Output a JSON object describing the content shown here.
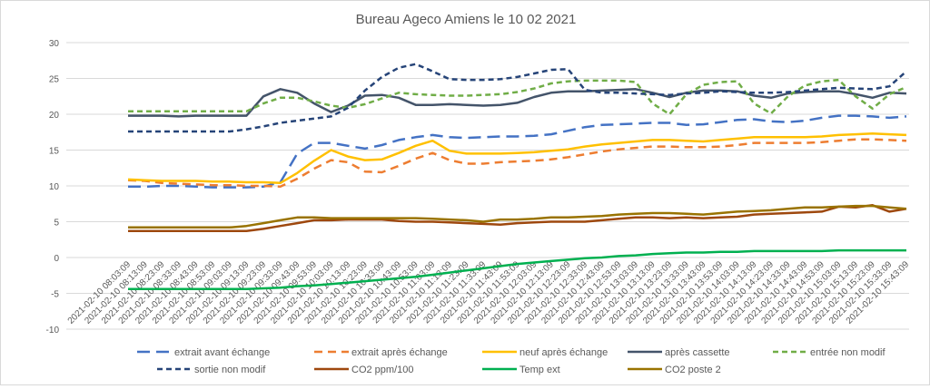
{
  "chart_data": {
    "type": "line",
    "title": "Bureau Ageco Amiens le 10 02 2021",
    "xlabel": "",
    "ylabel": "",
    "ylim": [
      -10,
      30
    ],
    "yticks": [
      30,
      25,
      20,
      15,
      10,
      5,
      0,
      -5,
      -10
    ],
    "grid": true,
    "legend_position": "bottom",
    "categories": [
      "2021-02-10 08:03:09",
      "2021-02-10 08:13:09",
      "2021-02-10 08:23:09",
      "2021-02-10 08:33:09",
      "2021-02-10 08:43:09",
      "2021-02-10 08:53:09",
      "2021-02-10 09:03:09",
      "2021-02-10 09:13:09",
      "2021-02-10 09:23:09",
      "2021-02-10 09:33:09",
      "2021-02-10 09:43:09",
      "2021-02-10 09:53:09",
      "2021-02-10 10:03:09",
      "2021-02-10 10:13:09",
      "2021-02-10 10:23:09",
      "2021-02-10 10:33:09",
      "2021-02-10 10:43:09",
      "2021-02-10 10:53:09",
      "2021-02-10 11:03:09",
      "2021-02-10 11:13:09",
      "2021-02-10 11:23:09",
      "2021-02-10 11:33:09",
      "2021-02-10 11:43:09",
      "2021-02-10 11:53:09",
      "2021-02-10 12:03:09",
      "2021-02-10 12:13:09",
      "2021-02-10 12:23:09",
      "2021-02-10 12:33:09",
      "2021-02-10 12:43:09",
      "2021-02-10 12:53:09",
      "2021-02-10 13:03:09",
      "2021-02-10 13:13:09",
      "2021-02-10 13:23:09",
      "2021-02-10 13:33:09",
      "2021-02-10 13:43:09",
      "2021-02-10 13:53:09",
      "2021-02-10 14:03:09",
      "2021-02-10 14:13:09",
      "2021-02-10 14:23:09",
      "2021-02-10 14:33:09",
      "2021-02-10 14:43:09",
      "2021-02-10 14:53:09",
      "2021-02-10 15:03:09",
      "2021-02-10 15:13:09",
      "2021-02-10 15:23:09",
      "2021-02-10 15:33:09",
      "2021-02-10 15:43:09"
    ],
    "series": [
      {
        "name": "extrait avant échange",
        "color": "#4472C4",
        "dash": "14,7",
        "values": [
          9.9,
          9.9,
          10.0,
          10.0,
          9.9,
          9.8,
          9.8,
          9.8,
          9.9,
          10.5,
          14.5,
          16.0,
          16.0,
          15.6,
          15.2,
          15.7,
          16.4,
          16.8,
          17.1,
          16.8,
          16.7,
          16.8,
          16.9,
          16.9,
          17.0,
          17.2,
          17.7,
          18.2,
          18.5,
          18.6,
          18.7,
          18.8,
          18.8,
          18.5,
          18.6,
          18.9,
          19.2,
          19.3,
          19.0,
          18.9,
          19.1,
          19.5,
          19.8,
          19.8,
          19.7,
          19.5,
          19.7
        ]
      },
      {
        "name": "extrait après échange",
        "color": "#ED7D31",
        "dash": "9,6",
        "values": [
          10.8,
          10.7,
          10.4,
          10.3,
          10.2,
          10.1,
          10.1,
          10.0,
          10.0,
          9.9,
          11.0,
          12.4,
          13.6,
          13.3,
          12.0,
          11.9,
          12.8,
          13.8,
          14.6,
          13.6,
          13.1,
          13.1,
          13.3,
          13.4,
          13.5,
          13.7,
          14.0,
          14.4,
          14.8,
          15.1,
          15.3,
          15.5,
          15.5,
          15.4,
          15.4,
          15.5,
          15.7,
          16.0,
          16.0,
          16.0,
          16.0,
          16.1,
          16.3,
          16.5,
          16.5,
          16.4,
          16.3
        ]
      },
      {
        "name": "neuf après échange",
        "color": "#FFC000",
        "dash": "",
        "values": [
          10.9,
          10.8,
          10.7,
          10.7,
          10.7,
          10.6,
          10.6,
          10.5,
          10.5,
          10.4,
          11.8,
          13.5,
          15.0,
          14.1,
          13.6,
          13.7,
          14.6,
          15.6,
          16.3,
          14.9,
          14.5,
          14.5,
          14.5,
          14.6,
          14.7,
          14.9,
          15.1,
          15.5,
          15.8,
          16.0,
          16.2,
          16.4,
          16.4,
          16.3,
          16.2,
          16.4,
          16.6,
          16.8,
          16.8,
          16.8,
          16.8,
          16.9,
          17.1,
          17.2,
          17.3,
          17.2,
          17.1
        ]
      },
      {
        "name": "après cassette",
        "color": "#44546A",
        "dash": "",
        "values": [
          19.8,
          19.8,
          19.8,
          19.7,
          19.8,
          19.8,
          19.8,
          19.8,
          22.5,
          23.5,
          23.0,
          21.5,
          20.3,
          21.2,
          22.6,
          22.7,
          22.3,
          21.3,
          21.3,
          21.4,
          21.3,
          21.2,
          21.3,
          21.6,
          22.4,
          23.0,
          23.2,
          23.2,
          23.3,
          23.4,
          23.5,
          23.0,
          22.4,
          23.0,
          23.3,
          23.3,
          23.2,
          22.6,
          22.3,
          22.9,
          23.1,
          23.2,
          23.2,
          22.8,
          22.3,
          23.0,
          22.9
        ]
      },
      {
        "name": "entrée non modif",
        "color": "#70AD47",
        "dash": "6,4",
        "values": [
          20.4,
          20.4,
          20.4,
          20.4,
          20.4,
          20.4,
          20.4,
          20.4,
          21.5,
          22.3,
          22.3,
          21.8,
          21.2,
          20.9,
          21.4,
          22.2,
          23.0,
          22.8,
          22.7,
          22.6,
          22.6,
          22.7,
          22.8,
          23.1,
          23.6,
          24.3,
          24.6,
          24.7,
          24.7,
          24.7,
          24.5,
          21.5,
          20.0,
          22.8,
          24.1,
          24.5,
          24.6,
          21.5,
          20.1,
          22.5,
          24.0,
          24.6,
          24.8,
          22.5,
          20.8,
          22.8,
          23.8
        ]
      },
      {
        "name": "sortie non modif",
        "color": "#264478",
        "dash": "6,4",
        "values": [
          17.6,
          17.6,
          17.6,
          17.6,
          17.6,
          17.6,
          17.6,
          17.9,
          18.3,
          18.8,
          19.1,
          19.4,
          19.7,
          20.9,
          23.3,
          25.2,
          26.5,
          27.0,
          26.0,
          24.9,
          24.8,
          24.8,
          24.9,
          25.2,
          25.7,
          26.2,
          26.3,
          23.4,
          23.0,
          23.0,
          22.9,
          22.8,
          22.7,
          22.9,
          23.0,
          23.2,
          23.1,
          23.0,
          23.0,
          23.1,
          23.3,
          23.5,
          23.7,
          23.6,
          23.5,
          23.9,
          26.0
        ]
      },
      {
        "name": "CO2 ppm/100",
        "color": "#9E480E",
        "dash": "",
        "values": [
          3.7,
          3.7,
          3.7,
          3.7,
          3.7,
          3.7,
          3.7,
          3.7,
          4.0,
          4.4,
          4.8,
          5.2,
          5.2,
          5.3,
          5.3,
          5.3,
          5.1,
          5.0,
          5.0,
          4.9,
          4.8,
          4.7,
          4.6,
          4.8,
          4.9,
          5.0,
          5.0,
          5.0,
          5.2,
          5.4,
          5.6,
          5.6,
          5.5,
          5.6,
          5.5,
          5.6,
          5.7,
          6.0,
          6.1,
          6.2,
          6.3,
          6.4,
          7.1,
          7.0,
          7.3,
          6.4,
          6.8
        ]
      },
      {
        "name": "Temp ext",
        "color": "#00B050",
        "dash": "",
        "values": [
          -4.4,
          -4.4,
          -4.4,
          -4.4,
          -4.4,
          -4.4,
          -4.4,
          -4.4,
          -4.3,
          -4.2,
          -4.0,
          -3.9,
          -3.7,
          -3.5,
          -3.3,
          -3.1,
          -2.9,
          -2.7,
          -2.4,
          -2.1,
          -1.8,
          -1.5,
          -1.2,
          -0.9,
          -0.7,
          -0.5,
          -0.3,
          -0.1,
          0.0,
          0.2,
          0.3,
          0.5,
          0.6,
          0.7,
          0.7,
          0.8,
          0.8,
          0.9,
          0.9,
          0.9,
          0.9,
          0.9,
          1.0,
          1.0,
          1.0,
          1.0,
          1.0
        ]
      },
      {
        "name": "CO2 poste 2",
        "color": "#997300",
        "dash": "",
        "values": [
          4.2,
          4.2,
          4.2,
          4.2,
          4.2,
          4.2,
          4.2,
          4.4,
          4.8,
          5.2,
          5.6,
          5.6,
          5.5,
          5.5,
          5.5,
          5.5,
          5.5,
          5.5,
          5.4,
          5.3,
          5.2,
          5.0,
          5.3,
          5.3,
          5.4,
          5.6,
          5.6,
          5.7,
          5.8,
          6.0,
          6.1,
          6.2,
          6.2,
          6.1,
          6.0,
          6.2,
          6.4,
          6.5,
          6.6,
          6.8,
          7.0,
          7.0,
          7.1,
          7.2,
          7.2,
          7.0,
          6.8
        ]
      }
    ]
  }
}
